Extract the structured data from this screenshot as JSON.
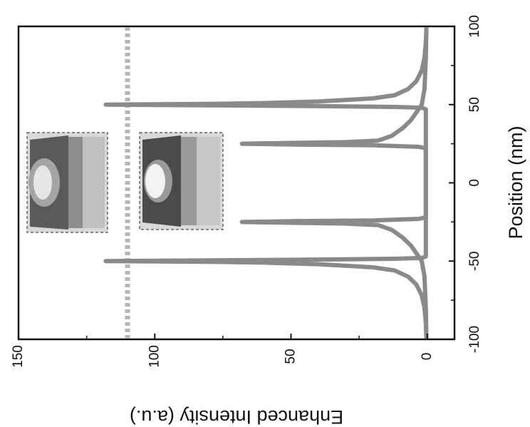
{
  "chart_data": {
    "type": "line",
    "orientation": "rotated-90-clockwise",
    "title": "",
    "xlabel": "Position (nm)",
    "ylabel": "Enhanced Intensity (a.u.)",
    "xlim": [
      -100,
      100
    ],
    "ylim": [
      -10,
      150
    ],
    "x_ticks": [
      "-100",
      "-50",
      "0",
      "50",
      "100"
    ],
    "y_ticks": [
      "0",
      "50",
      "100",
      "150"
    ],
    "grid": false,
    "legend": "none",
    "reference_line": {
      "y": 110,
      "style": "dotted"
    },
    "series": [
      {
        "color": "#8a8a8a",
        "points": [
          [
            -100,
            0.3
          ],
          [
            -90,
            0.5
          ],
          [
            -80,
            1
          ],
          [
            -72,
            2
          ],
          [
            -65,
            4
          ],
          [
            -60,
            7
          ],
          [
            -56,
            12
          ],
          [
            -54,
            20
          ],
          [
            -52,
            40
          ],
          [
            -51,
            60
          ],
          [
            -50.5,
            80
          ],
          [
            -50,
            118
          ],
          [
            -49.5,
            80
          ],
          [
            -49,
            40
          ],
          [
            -48.5,
            12
          ],
          [
            -48,
            2
          ],
          [
            -47,
            0.5
          ],
          [
            47,
            0.5
          ],
          [
            48,
            2
          ],
          [
            48.5,
            12
          ],
          [
            49,
            40
          ],
          [
            49.5,
            80
          ],
          [
            50,
            118
          ],
          [
            50.5,
            80
          ],
          [
            51,
            60
          ],
          [
            52,
            40
          ],
          [
            54,
            20
          ],
          [
            56,
            12
          ],
          [
            60,
            7
          ],
          [
            65,
            4
          ],
          [
            72,
            2
          ],
          [
            80,
            1
          ],
          [
            90,
            0.5
          ],
          [
            100,
            0.3
          ]
        ]
      },
      {
        "color": "#8a8a8a",
        "points": [
          [
            -100,
            0.3
          ],
          [
            -80,
            0.5
          ],
          [
            -60,
            1
          ],
          [
            -50,
            2
          ],
          [
            -45,
            4
          ],
          [
            -40,
            6
          ],
          [
            -35,
            9
          ],
          [
            -30,
            13
          ],
          [
            -27,
            18
          ],
          [
            -26,
            30
          ],
          [
            -25.5,
            50
          ],
          [
            -25,
            68
          ],
          [
            -24.5,
            50
          ],
          [
            -24,
            20
          ],
          [
            -23,
            3
          ],
          [
            -22,
            0.5
          ],
          [
            22,
            0.5
          ],
          [
            23,
            3
          ],
          [
            24,
            20
          ],
          [
            24.5,
            50
          ],
          [
            25,
            68
          ],
          [
            25.5,
            50
          ],
          [
            26,
            30
          ],
          [
            27,
            18
          ],
          [
            30,
            13
          ],
          [
            35,
            9
          ],
          [
            40,
            6
          ],
          [
            45,
            4
          ],
          [
            50,
            2
          ],
          [
            60,
            1
          ],
          [
            80,
            0.5
          ],
          [
            100,
            0.3
          ]
        ]
      }
    ]
  },
  "insets": [
    {
      "label_icon": "field-map-inset-large-icon"
    },
    {
      "label_icon": "field-map-inset-small-icon"
    }
  ],
  "colors": {
    "curve": "#8a8a8a",
    "axis": "#111111",
    "refline": "#b5b5b5"
  }
}
